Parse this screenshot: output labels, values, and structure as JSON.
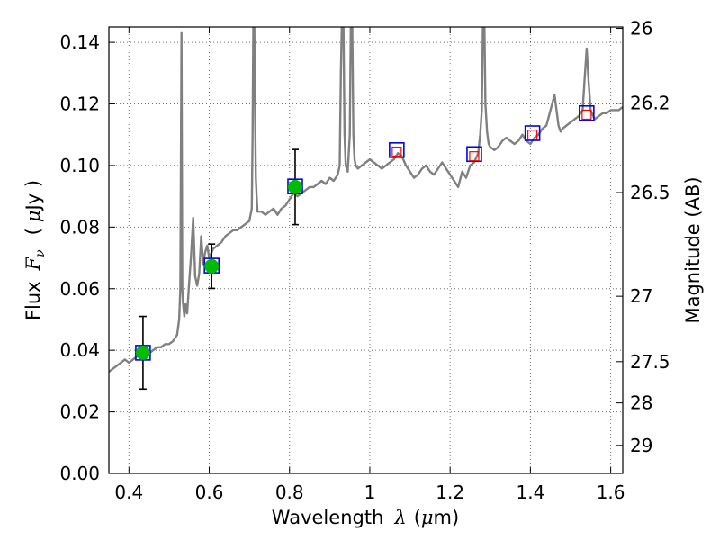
{
  "chart_data": {
    "type": "scatter",
    "xlabel_text": "Wavelength",
    "xlabel_symbol": "λ",
    "xlabel_unit_open": "(",
    "xlabel_unit_mu": "μ",
    "xlabel_unit_rest": "m)",
    "ylabel_text": "Flux",
    "ylabel_symbol": "F",
    "ylabel_sub": "ν",
    "ylabel_unit_open": "(",
    "ylabel_unit_mu": "μ",
    "ylabel_unit_rest": "Jy )",
    "y2label": "Magnitude (AB)",
    "xlim": [
      0.35,
      1.63
    ],
    "ylim": [
      0.0,
      0.145
    ],
    "grid": true,
    "x_ticks": [
      {
        "value": 0.4,
        "label": "0.4"
      },
      {
        "value": 0.6,
        "label": "0.6"
      },
      {
        "value": 0.8,
        "label": "0.8"
      },
      {
        "value": 1.0,
        "label": "1"
      },
      {
        "value": 1.2,
        "label": "1.2"
      },
      {
        "value": 1.4,
        "label": "1.4"
      },
      {
        "value": 1.6,
        "label": "1.6"
      }
    ],
    "y_ticks": [
      {
        "value": 0.0,
        "label": "0.00"
      },
      {
        "value": 0.02,
        "label": "0.02"
      },
      {
        "value": 0.04,
        "label": "0.04"
      },
      {
        "value": 0.06,
        "label": "0.06"
      },
      {
        "value": 0.08,
        "label": "0.08"
      },
      {
        "value": 0.1,
        "label": "0.10"
      },
      {
        "value": 0.12,
        "label": "0.12"
      },
      {
        "value": 0.14,
        "label": "0.14"
      }
    ],
    "y2_ticks": [
      {
        "value": 26.0,
        "label": "26"
      },
      {
        "value": 26.2,
        "label": "26.2"
      },
      {
        "value": 26.5,
        "label": "26.5"
      },
      {
        "value": 27.0,
        "label": "27"
      },
      {
        "value": 27.5,
        "label": "27.5"
      },
      {
        "value": 28.0,
        "label": "28"
      },
      {
        "value": 29.0,
        "label": "29"
      }
    ],
    "colors": {
      "model": "#808080",
      "observed": "#00bb00",
      "box": "#0000ff",
      "model_phot": "#ff0000",
      "error": "#000000"
    },
    "observed": [
      {
        "x": 0.435,
        "y": 0.0392,
        "err": 0.0118
      },
      {
        "x": 0.606,
        "y": 0.0673,
        "err": 0.0072
      },
      {
        "x": 0.814,
        "y": 0.093,
        "err": 0.0122
      }
    ],
    "model_phot_boxes": [
      {
        "x": 0.435,
        "y": 0.0392
      },
      {
        "x": 0.606,
        "y": 0.0675
      },
      {
        "x": 0.814,
        "y": 0.0932
      },
      {
        "x": 1.067,
        "y": 0.105
      },
      {
        "x": 1.26,
        "y": 0.1037
      },
      {
        "x": 1.405,
        "y": 0.1105
      },
      {
        "x": 1.54,
        "y": 0.117
      }
    ],
    "model_phot_points": [
      {
        "x": 1.067,
        "y": 0.1045
      },
      {
        "x": 1.26,
        "y": 0.103
      },
      {
        "x": 1.405,
        "y": 0.11
      },
      {
        "x": 1.54,
        "y": 0.1165
      }
    ],
    "model_spectrum": {
      "x": [
        0.35,
        0.36,
        0.37,
        0.38,
        0.39,
        0.4,
        0.41,
        0.42,
        0.43,
        0.44,
        0.45,
        0.46,
        0.47,
        0.48,
        0.49,
        0.5,
        0.51,
        0.52,
        0.525,
        0.528,
        0.531,
        0.533,
        0.535,
        0.538,
        0.541,
        0.545,
        0.55,
        0.555,
        0.56,
        0.565,
        0.57,
        0.575,
        0.58,
        0.585,
        0.59,
        0.595,
        0.6,
        0.61,
        0.62,
        0.63,
        0.64,
        0.65,
        0.66,
        0.67,
        0.68,
        0.69,
        0.7,
        0.706,
        0.708,
        0.71,
        0.712,
        0.714,
        0.716,
        0.718,
        0.72,
        0.73,
        0.74,
        0.75,
        0.76,
        0.77,
        0.78,
        0.79,
        0.8,
        0.81,
        0.82,
        0.83,
        0.84,
        0.85,
        0.86,
        0.87,
        0.88,
        0.89,
        0.9,
        0.91,
        0.92,
        0.925,
        0.928,
        0.931,
        0.934,
        0.937,
        0.94,
        0.945,
        0.95,
        0.953,
        0.956,
        0.959,
        0.962,
        0.965,
        0.97,
        0.98,
        0.99,
        1.0,
        1.01,
        1.02,
        1.03,
        1.04,
        1.05,
        1.06,
        1.07,
        1.08,
        1.09,
        1.1,
        1.11,
        1.12,
        1.13,
        1.14,
        1.15,
        1.16,
        1.17,
        1.18,
        1.19,
        1.2,
        1.21,
        1.22,
        1.23,
        1.24,
        1.25,
        1.26,
        1.27,
        1.275,
        1.279,
        1.282,
        1.285,
        1.288,
        1.292,
        1.296,
        1.3,
        1.31,
        1.32,
        1.33,
        1.34,
        1.35,
        1.36,
        1.37,
        1.38,
        1.39,
        1.4,
        1.41,
        1.42,
        1.43,
        1.44,
        1.45,
        1.46,
        1.465,
        1.47,
        1.475,
        1.48,
        1.49,
        1.5,
        1.51,
        1.52,
        1.53,
        1.535,
        1.54,
        1.545,
        1.55,
        1.56,
        1.57,
        1.58,
        1.59,
        1.6,
        1.61,
        1.62,
        1.63
      ],
      "y": [
        0.033,
        0.034,
        0.035,
        0.036,
        0.037,
        0.036,
        0.037,
        0.038,
        0.039,
        0.04,
        0.039,
        0.04,
        0.041,
        0.041,
        0.042,
        0.042,
        0.043,
        0.045,
        0.05,
        0.06,
        0.143,
        0.06,
        0.055,
        0.051,
        0.055,
        0.052,
        0.062,
        0.071,
        0.083,
        0.064,
        0.061,
        0.065,
        0.077,
        0.068,
        0.072,
        0.074,
        0.07,
        0.073,
        0.074,
        0.075,
        0.077,
        0.078,
        0.079,
        0.079,
        0.08,
        0.081,
        0.082,
        0.086,
        0.11,
        0.15,
        0.15,
        0.12,
        0.096,
        0.09,
        0.085,
        0.085,
        0.084,
        0.085,
        0.086,
        0.084,
        0.086,
        0.087,
        0.089,
        0.091,
        0.09,
        0.091,
        0.092,
        0.093,
        0.093,
        0.094,
        0.095,
        0.094,
        0.096,
        0.095,
        0.097,
        0.1,
        0.13,
        0.15,
        0.15,
        0.11,
        0.1,
        0.098,
        0.11,
        0.15,
        0.15,
        0.11,
        0.102,
        0.1,
        0.099,
        0.1,
        0.101,
        0.102,
        0.101,
        0.1,
        0.099,
        0.1,
        0.101,
        0.102,
        0.104,
        0.103,
        0.1,
        0.098,
        0.096,
        0.097,
        0.099,
        0.1,
        0.098,
        0.097,
        0.099,
        0.101,
        0.099,
        0.097,
        0.095,
        0.093,
        0.098,
        0.096,
        0.1,
        0.101,
        0.104,
        0.11,
        0.118,
        0.15,
        0.15,
        0.12,
        0.111,
        0.107,
        0.106,
        0.105,
        0.106,
        0.108,
        0.109,
        0.108,
        0.107,
        0.108,
        0.11,
        0.108,
        0.107,
        0.109,
        0.11,
        0.112,
        0.113,
        0.118,
        0.123,
        0.118,
        0.113,
        0.111,
        0.112,
        0.113,
        0.114,
        0.115,
        0.116,
        0.118,
        0.128,
        0.138,
        0.127,
        0.118,
        0.115,
        0.116,
        0.117,
        0.117,
        0.118,
        0.118,
        0.118,
        0.119
      ]
    }
  }
}
